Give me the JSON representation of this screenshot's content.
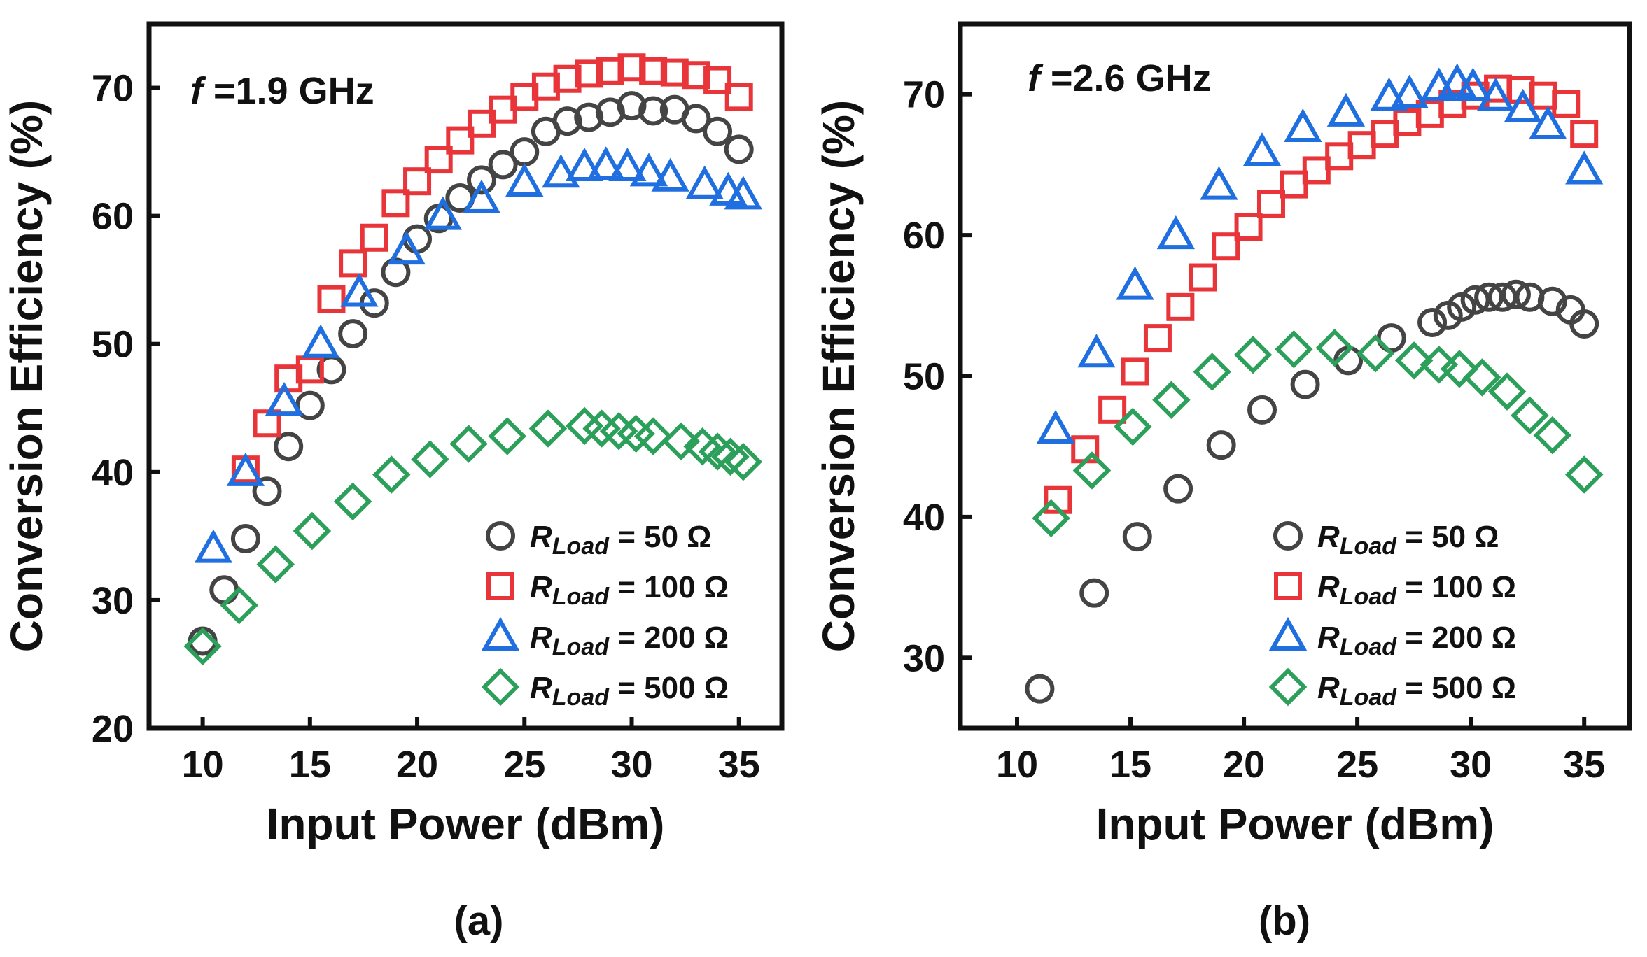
{
  "chart_data": [
    {
      "panel": "a",
      "type": "scatter",
      "caption": "(a)",
      "annotation": {
        "symbol": "f",
        "text": " =1.9 GHz"
      },
      "xlabel": "Input Power (dBm)",
      "ylabel": "Conversion Efficiency (%)",
      "xlim": [
        7.5,
        37
      ],
      "ylim": [
        20,
        75
      ],
      "xticks": [
        10,
        15,
        20,
        25,
        30,
        35
      ],
      "yticks": [
        20,
        30,
        40,
        50,
        60,
        70
      ],
      "legend_position": "bottom-right",
      "series": [
        {
          "name": "50 Ω",
          "label_main": "R",
          "label_sub": "Load",
          "label_value": " = 50 Ω",
          "marker": "circle",
          "color": "#444444",
          "x": [
            10.0,
            11.0,
            12.0,
            13.0,
            14.0,
            15.0,
            16.0,
            17.0,
            18.0,
            19.0,
            20.0,
            21.0,
            22.0,
            23.0,
            24.0,
            25.0,
            26.0,
            27.0,
            28.0,
            29.0,
            30.0,
            31.0,
            32.0,
            33.0,
            34.0,
            35.0
          ],
          "y": [
            26.8,
            30.8,
            34.8,
            38.5,
            42.0,
            45.2,
            48.0,
            50.8,
            53.2,
            55.6,
            58.2,
            59.8,
            61.4,
            62.8,
            64.0,
            65.0,
            66.6,
            67.4,
            67.7,
            68.1,
            68.6,
            68.2,
            68.3,
            67.6,
            66.6,
            65.2
          ]
        },
        {
          "name": "100 Ω",
          "label_main": "R",
          "label_sub": "Load",
          "label_value": " = 100 Ω",
          "marker": "square",
          "color": "#e8353a",
          "x": [
            12.0,
            13.0,
            14.0,
            15.0,
            16.0,
            17.0,
            18.0,
            19.0,
            20.0,
            21.0,
            22.0,
            23.0,
            24.0,
            25.0,
            26.0,
            27.0,
            28.0,
            29.0,
            30.0,
            31.0,
            32.0,
            33.0,
            34.0,
            35.0
          ],
          "y": [
            40.2,
            43.8,
            47.3,
            48.0,
            53.5,
            56.3,
            58.3,
            61.0,
            62.7,
            64.4,
            65.9,
            67.2,
            68.3,
            69.3,
            70.1,
            70.7,
            71.1,
            71.3,
            71.6,
            71.3,
            71.2,
            71.0,
            70.6,
            69.3
          ]
        },
        {
          "name": "200 Ω",
          "label_main": "R",
          "label_sub": "Load",
          "label_value": " = 200 Ω",
          "marker": "triangle",
          "color": "#1f6fe0",
          "x": [
            10.5,
            12.0,
            13.8,
            15.5,
            17.3,
            19.5,
            21.2,
            23.0,
            25.0,
            26.7,
            27.8,
            28.8,
            29.8,
            30.8,
            31.8,
            33.4,
            34.5,
            35.2
          ],
          "y": [
            34.0,
            40.0,
            45.5,
            50.0,
            54.0,
            57.3,
            60.0,
            61.3,
            62.6,
            63.3,
            63.8,
            63.9,
            63.8,
            63.4,
            63.0,
            62.4,
            61.9,
            61.6
          ]
        },
        {
          "name": "500 Ω",
          "label_main": "R",
          "label_sub": "Load",
          "label_value": " = 500 Ω",
          "marker": "diamond",
          "color": "#2ca05a",
          "x": [
            10.0,
            11.7,
            13.4,
            15.1,
            17.0,
            18.8,
            20.6,
            22.4,
            24.2,
            26.1,
            27.8,
            28.6,
            29.4,
            30.2,
            31.0,
            32.3,
            33.3,
            34.0,
            34.6,
            35.2
          ],
          "y": [
            26.4,
            29.6,
            32.8,
            35.4,
            37.7,
            39.8,
            41.0,
            42.2,
            42.8,
            43.4,
            43.6,
            43.4,
            43.2,
            43.0,
            42.8,
            42.4,
            42.0,
            41.6,
            41.2,
            40.8
          ]
        }
      ]
    },
    {
      "panel": "b",
      "type": "scatter",
      "caption": "(b)",
      "annotation": {
        "symbol": "f",
        "text": " =2.6 GHz"
      },
      "xlabel": "Input Power (dBm)",
      "ylabel": "Conversion Efficiency (%)",
      "xlim": [
        7.5,
        37
      ],
      "ylim": [
        25,
        75
      ],
      "xticks": [
        10,
        15,
        20,
        25,
        30,
        35
      ],
      "yticks": [
        30,
        40,
        50,
        60,
        70
      ],
      "legend_position": "bottom-right",
      "series": [
        {
          "name": "50 Ω",
          "label_main": "R",
          "label_sub": "Load",
          "label_value": " = 50 Ω",
          "marker": "circle",
          "color": "#444444",
          "x": [
            11.0,
            13.4,
            15.3,
            17.1,
            19.0,
            20.8,
            22.7,
            24.6,
            26.5,
            28.3,
            29.0,
            29.6,
            30.2,
            30.8,
            31.4,
            32.0,
            32.6,
            33.6,
            34.4,
            35.0
          ],
          "y": [
            27.8,
            34.6,
            38.6,
            42.0,
            45.1,
            47.6,
            49.4,
            51.1,
            52.7,
            53.8,
            54.3,
            54.9,
            55.4,
            55.6,
            55.6,
            55.8,
            55.6,
            55.3,
            54.7,
            53.7
          ]
        },
        {
          "name": "100 Ω",
          "label_main": "R",
          "label_sub": "Load",
          "label_value": " = 100 Ω",
          "marker": "square",
          "color": "#e8353a",
          "x": [
            11.8,
            13.0,
            14.2,
            15.2,
            16.2,
            17.2,
            18.2,
            19.2,
            20.2,
            21.2,
            22.2,
            23.2,
            24.2,
            25.2,
            26.2,
            27.2,
            28.2,
            29.2,
            30.2,
            31.2,
            32.2,
            33.2,
            34.2,
            35.0
          ],
          "y": [
            41.2,
            44.8,
            47.6,
            50.3,
            52.7,
            54.9,
            57.0,
            59.2,
            60.6,
            62.2,
            63.6,
            64.6,
            65.6,
            66.4,
            67.2,
            68.0,
            68.6,
            69.3,
            69.9,
            70.4,
            70.3,
            69.9,
            69.3,
            67.2
          ]
        },
        {
          "name": "200 Ω",
          "label_main": "R",
          "label_sub": "Load",
          "label_value": " = 200 Ω",
          "marker": "triangle",
          "color": "#1f6fe0",
          "x": [
            11.7,
            13.5,
            15.2,
            17.0,
            18.9,
            20.8,
            22.6,
            24.5,
            26.4,
            27.3,
            28.6,
            29.4,
            30.1,
            31.1,
            32.3,
            33.4,
            35.0
          ],
          "y": [
            46.2,
            51.6,
            56.4,
            60.0,
            63.5,
            65.9,
            67.6,
            68.7,
            69.8,
            70.0,
            70.5,
            70.8,
            70.5,
            69.8,
            69.0,
            67.8,
            64.6
          ]
        },
        {
          "name": "500 Ω",
          "label_main": "R",
          "label_sub": "Load",
          "label_value": " = 500 Ω",
          "marker": "diamond",
          "color": "#2ca05a",
          "x": [
            11.5,
            13.3,
            15.1,
            16.8,
            18.6,
            20.4,
            22.2,
            24.0,
            25.8,
            27.5,
            28.6,
            29.5,
            30.5,
            31.6,
            32.6,
            33.6,
            35.0
          ],
          "y": [
            39.9,
            43.3,
            46.4,
            48.3,
            50.3,
            51.5,
            51.9,
            52.0,
            51.6,
            51.1,
            50.8,
            50.5,
            49.9,
            48.9,
            47.2,
            45.8,
            43.0
          ]
        }
      ]
    }
  ]
}
